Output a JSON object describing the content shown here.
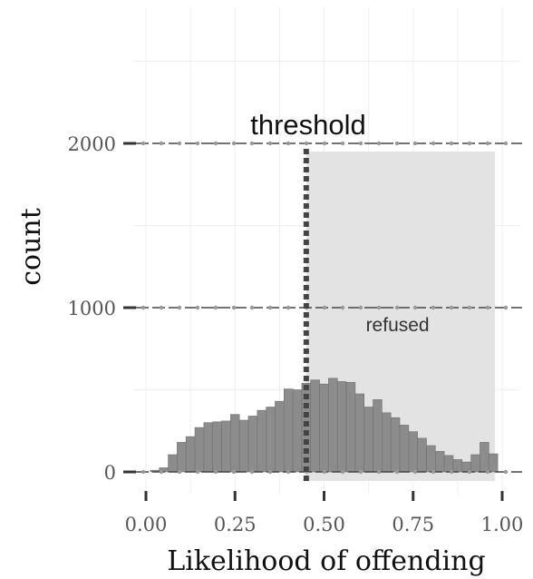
{
  "chart_data": {
    "type": "bar",
    "title": "",
    "xlabel": "Likelihood of offending",
    "ylabel": "count",
    "xlim": [
      -0.02,
      1.02
    ],
    "ylim": [
      -30,
      2800
    ],
    "x_ticks": [
      0.0,
      0.25,
      0.5,
      0.75,
      1.0
    ],
    "x_tick_labels": [
      "0.00",
      "0.25",
      "0.50",
      "0.75",
      "1.00"
    ],
    "y_ticks": [
      0,
      1000,
      2000
    ],
    "y_tick_labels": [
      "0",
      "1000",
      "2000"
    ],
    "grid": true,
    "bin_width": 0.025,
    "bins": [
      {
        "x": 0.025,
        "count": 10
      },
      {
        "x": 0.05,
        "count": 25
      },
      {
        "x": 0.075,
        "count": 105
      },
      {
        "x": 0.1,
        "count": 180
      },
      {
        "x": 0.125,
        "count": 215
      },
      {
        "x": 0.15,
        "count": 270
      },
      {
        "x": 0.175,
        "count": 300
      },
      {
        "x": 0.2,
        "count": 305
      },
      {
        "x": 0.225,
        "count": 310
      },
      {
        "x": 0.25,
        "count": 350
      },
      {
        "x": 0.275,
        "count": 315
      },
      {
        "x": 0.3,
        "count": 340
      },
      {
        "x": 0.325,
        "count": 375
      },
      {
        "x": 0.35,
        "count": 395
      },
      {
        "x": 0.375,
        "count": 430
      },
      {
        "x": 0.4,
        "count": 505
      },
      {
        "x": 0.425,
        "count": 500
      },
      {
        "x": 0.45,
        "count": 540
      },
      {
        "x": 0.475,
        "count": 560
      },
      {
        "x": 0.5,
        "count": 535
      },
      {
        "x": 0.525,
        "count": 570
      },
      {
        "x": 0.55,
        "count": 550
      },
      {
        "x": 0.575,
        "count": 545
      },
      {
        "x": 0.6,
        "count": 475
      },
      {
        "x": 0.625,
        "count": 395
      },
      {
        "x": 0.65,
        "count": 440
      },
      {
        "x": 0.675,
        "count": 360
      },
      {
        "x": 0.7,
        "count": 330
      },
      {
        "x": 0.725,
        "count": 285
      },
      {
        "x": 0.75,
        "count": 245
      },
      {
        "x": 0.775,
        "count": 205
      },
      {
        "x": 0.8,
        "count": 160
      },
      {
        "x": 0.825,
        "count": 125
      },
      {
        "x": 0.85,
        "count": 100
      },
      {
        "x": 0.875,
        "count": 75
      },
      {
        "x": 0.9,
        "count": 60
      },
      {
        "x": 0.925,
        "count": 105
      },
      {
        "x": 0.95,
        "count": 180
      },
      {
        "x": 0.975,
        "count": 110
      }
    ],
    "bar_color": "#8c8c8c",
    "bar_edge_color": "#707070",
    "threshold": {
      "x": 0.45,
      "label": "threshold",
      "label_y": 2100,
      "color": "#444444"
    },
    "refused_region": {
      "x_start": 0.45,
      "x_end": 0.98,
      "y_top": 1950,
      "label": "refused",
      "label_x": 0.63,
      "label_y": 900,
      "color": "#e3e3e3"
    },
    "hlines": [
      {
        "y": 2000
      },
      {
        "y": 1000
      },
      {
        "y": 0
      }
    ]
  }
}
